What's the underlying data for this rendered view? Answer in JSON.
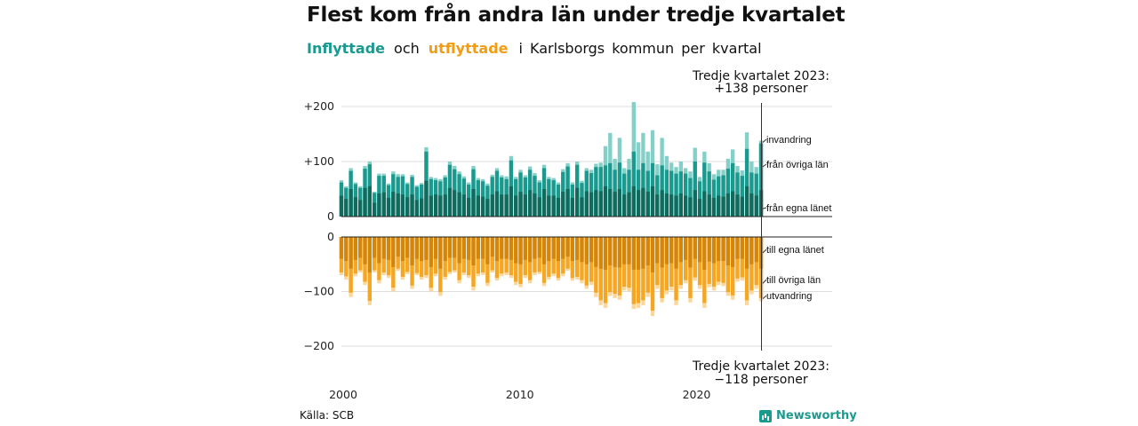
{
  "header": {
    "title": "Flest kom från andra län under tredje kvartalet",
    "subtitle_in": "Inflyttade",
    "subtitle_and": "och",
    "subtitle_out": "utflyttade",
    "subtitle_rest": "i Karlsborgs kommun per kvartal"
  },
  "annotations": {
    "top_line1": "Tredje kvartalet 2023:",
    "top_line2": "+138 personer",
    "bottom_line1": "Tredje kvartalet 2023:",
    "bottom_line2": "−118 personer"
  },
  "footer": {
    "source": "Källa: SCB",
    "brand": "Newsworthy"
  },
  "colors": {
    "in_own": "#0e6b5e",
    "in_other": "#1a9a8e",
    "in_imm": "#84d0c8",
    "out_own": "#d4860b",
    "out_other": "#f5a623",
    "out_emig": "#fbd79c",
    "grid": "#dddddd",
    "axis": "#222222"
  },
  "chart_data": {
    "type": "bar",
    "stacked": true,
    "x_range": [
      2000,
      2023.75
    ],
    "x_ticks": [
      2000,
      2010,
      2020
    ],
    "x_tick_labels": [
      "2000",
      "2010",
      "2020"
    ],
    "in_ylim": [
      0,
      210
    ],
    "in_yticks": [
      0,
      100,
      200
    ],
    "in_ytick_labels": [
      "0",
      "+100",
      "+200"
    ],
    "out_ylim": [
      0,
      210
    ],
    "out_yticks": [
      0,
      -100,
      -200
    ],
    "out_ytick_labels": [
      "0",
      "−100",
      "−200"
    ],
    "grid": true,
    "in_segment_labels": [
      "invandring",
      "från övriga län",
      "från egna länet"
    ],
    "out_segment_labels": [
      "till egna länet",
      "till övriga län",
      "utvandring"
    ],
    "in_totals": [
      66,
      55,
      88,
      62,
      55,
      92,
      100,
      45,
      78,
      78,
      60,
      82,
      77,
      77,
      62,
      76,
      57,
      61,
      126,
      72,
      70,
      68,
      75,
      100,
      92,
      82,
      73,
      62,
      92,
      70,
      68,
      60,
      76,
      88,
      75,
      73,
      110,
      72,
      85,
      75,
      91,
      79,
      66,
      94,
      72,
      70,
      62,
      86,
      97,
      62,
      100,
      65,
      88,
      85,
      96,
      98,
      128,
      152,
      105,
      143,
      88,
      105,
      208,
      135,
      152,
      118,
      157,
      95,
      143,
      110,
      98,
      90,
      100,
      88,
      82,
      125,
      72,
      118,
      97,
      77,
      85,
      85,
      105,
      122,
      92,
      84,
      153,
      100,
      90,
      138
    ],
    "in_immigration": [
      4,
      3,
      5,
      3,
      3,
      5,
      5,
      2,
      4,
      4,
      3,
      5,
      5,
      4,
      3,
      4,
      3,
      3,
      8,
      4,
      4,
      4,
      4,
      6,
      6,
      5,
      4,
      4,
      6,
      4,
      4,
      4,
      4,
      5,
      4,
      5,
      8,
      4,
      5,
      4,
      6,
      5,
      4,
      6,
      4,
      4,
      4,
      5,
      6,
      4,
      6,
      4,
      5,
      6,
      6,
      8,
      35,
      55,
      20,
      45,
      10,
      20,
      90,
      50,
      55,
      35,
      60,
      20,
      50,
      25,
      15,
      12,
      18,
      10,
      12,
      25,
      8,
      20,
      15,
      10,
      12,
      10,
      18,
      25,
      12,
      10,
      30,
      20,
      12,
      5
    ],
    "in_own_county": [
      38,
      32,
      50,
      35,
      30,
      52,
      55,
      25,
      42,
      44,
      34,
      45,
      42,
      40,
      35,
      40,
      30,
      33,
      65,
      38,
      40,
      38,
      40,
      52,
      48,
      44,
      40,
      34,
      50,
      38,
      36,
      32,
      40,
      46,
      40,
      40,
      55,
      38,
      45,
      40,
      48,
      42,
      35,
      50,
      38,
      38,
      34,
      45,
      50,
      34,
      52,
      35,
      46,
      44,
      48,
      46,
      55,
      50,
      45,
      50,
      40,
      44,
      55,
      48,
      52,
      45,
      55,
      40,
      48,
      42,
      40,
      38,
      42,
      38,
      35,
      48,
      32,
      46,
      40,
      34,
      38,
      36,
      42,
      46,
      40,
      36,
      55,
      42,
      38,
      48
    ],
    "out_totals": [
      70,
      78,
      110,
      72,
      65,
      88,
      125,
      65,
      85,
      70,
      75,
      100,
      62,
      78,
      68,
      95,
      70,
      78,
      75,
      100,
      72,
      108,
      78,
      68,
      65,
      85,
      70,
      75,
      98,
      72,
      70,
      90,
      65,
      80,
      72,
      70,
      75,
      88,
      92,
      75,
      85,
      70,
      68,
      90,
      78,
      72,
      80,
      72,
      62,
      80,
      78,
      85,
      95,
      88,
      110,
      125,
      130,
      108,
      112,
      115,
      98,
      100,
      132,
      130,
      125,
      110,
      145,
      95,
      120,
      105,
      98,
      125,
      95,
      85,
      120,
      80,
      95,
      130,
      92,
      98,
      88,
      90,
      108,
      115,
      82,
      80,
      125,
      105,
      95,
      118
    ],
    "out_emigration": [
      5,
      6,
      8,
      5,
      4,
      6,
      8,
      4,
      6,
      5,
      5,
      7,
      4,
      5,
      4,
      6,
      4,
      5,
      5,
      7,
      5,
      7,
      5,
      4,
      4,
      6,
      5,
      5,
      7,
      5,
      5,
      6,
      4,
      5,
      5,
      5,
      5,
      6,
      6,
      5,
      6,
      5,
      4,
      6,
      5,
      5,
      5,
      5,
      4,
      5,
      5,
      6,
      6,
      6,
      8,
      9,
      9,
      7,
      8,
      8,
      7,
      7,
      9,
      9,
      9,
      8,
      10,
      7,
      8,
      7,
      7,
      9,
      7,
      6,
      8,
      6,
      7,
      9,
      6,
      7,
      6,
      6,
      7,
      8,
      6,
      6,
      9,
      7,
      7,
      6
    ],
    "out_own_county": [
      40,
      44,
      58,
      42,
      38,
      50,
      65,
      38,
      48,
      40,
      42,
      55,
      36,
      44,
      38,
      52,
      40,
      44,
      42,
      55,
      40,
      58,
      44,
      38,
      38,
      48,
      40,
      42,
      52,
      40,
      40,
      50,
      36,
      44,
      40,
      40,
      42,
      48,
      50,
      42,
      46,
      40,
      38,
      50,
      44,
      40,
      44,
      40,
      36,
      44,
      42,
      46,
      50,
      46,
      55,
      58,
      60,
      52,
      55,
      56,
      50,
      50,
      60,
      60,
      58,
      52,
      65,
      48,
      56,
      50,
      48,
      58,
      46,
      42,
      56,
      40,
      46,
      60,
      45,
      48,
      44,
      44,
      52,
      55,
      40,
      40,
      58,
      50,
      46,
      58
    ]
  }
}
